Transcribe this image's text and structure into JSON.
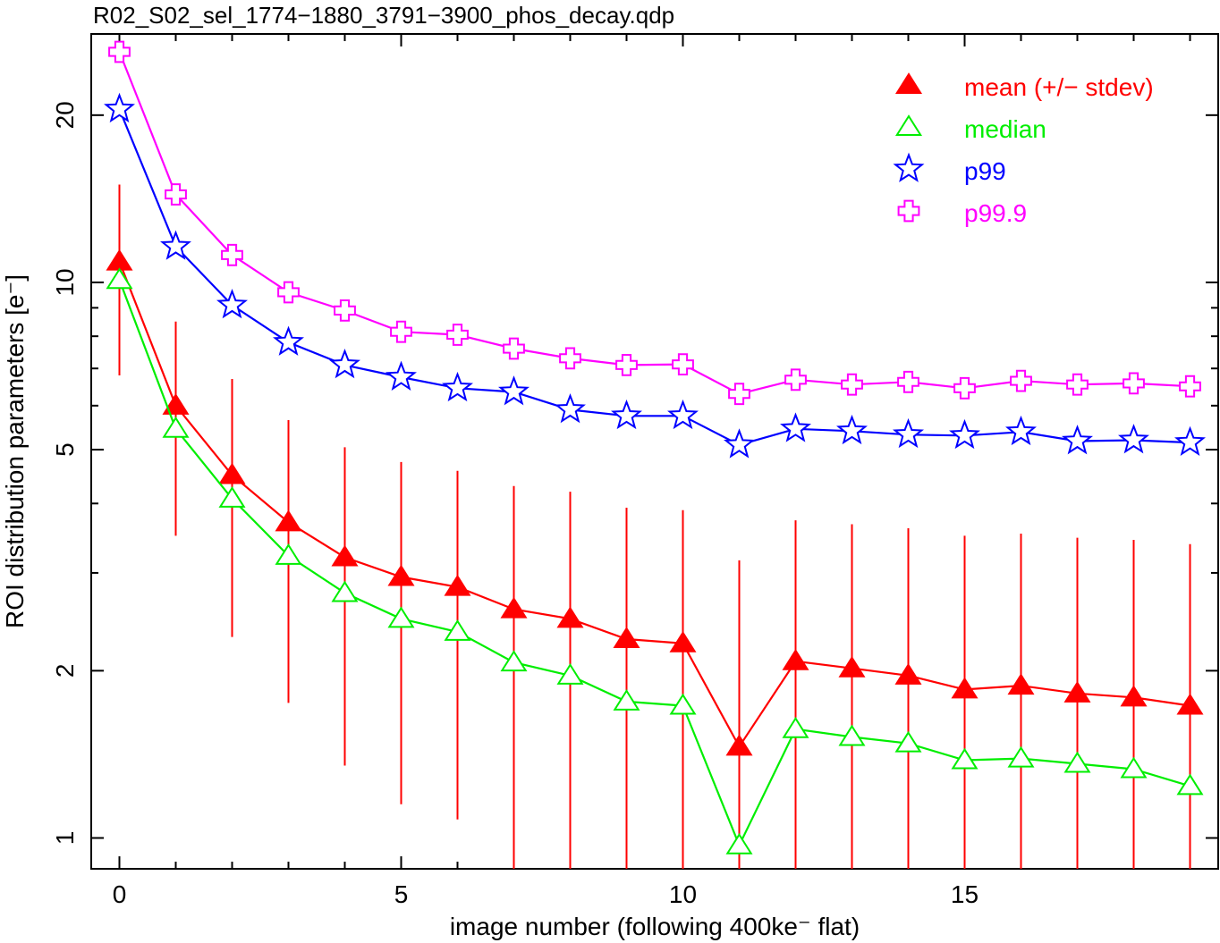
{
  "title": "R02_S02_sel_1774−1880_3791−3900_phos_decay.qdp",
  "chart_data": {
    "type": "line",
    "title": "R02_S02_sel_1774−1880_3791−3900_phos_decay.qdp",
    "xlabel": "image number (following 400ke⁻ flat)",
    "ylabel": "ROI distribution parameters [e⁻]",
    "xlim": [
      -0.5,
      19.5
    ],
    "ylim": [
      0.88,
      28
    ],
    "yscale": "log",
    "xticks": [
      0,
      5,
      10,
      15
    ],
    "yticks": [
      1,
      2,
      5,
      10,
      20
    ],
    "grid": false,
    "legend_position": "top-right",
    "x": [
      0,
      1,
      2,
      3,
      4,
      5,
      6,
      7,
      8,
      9,
      10,
      11,
      12,
      13,
      14,
      15,
      16,
      17,
      18,
      19
    ],
    "series": [
      {
        "name": "mean (+/− stdev)",
        "color": "#ff0000",
        "marker": "filled-triangle",
        "values": [
          10.9,
          6.0,
          4.5,
          3.7,
          3.2,
          2.95,
          2.83,
          2.58,
          2.48,
          2.28,
          2.24,
          1.46,
          2.08,
          2.02,
          1.96,
          1.85,
          1.88,
          1.82,
          1.79,
          1.73
        ],
        "error": [
          4.1,
          2.5,
          2.2,
          1.95,
          1.85,
          1.8,
          1.75,
          1.72,
          1.72,
          1.65,
          1.65,
          1.7,
          1.65,
          1.65,
          1.65,
          1.65,
          1.65,
          1.65,
          1.65,
          1.65
        ]
      },
      {
        "name": "median",
        "color": "#00ee00",
        "marker": "open-triangle",
        "values": [
          10.1,
          5.45,
          4.08,
          3.22,
          2.76,
          2.48,
          2.35,
          2.07,
          1.96,
          1.76,
          1.73,
          0.97,
          1.57,
          1.52,
          1.48,
          1.38,
          1.39,
          1.36,
          1.33,
          1.24
        ]
      },
      {
        "name": "p99",
        "color": "#0000ff",
        "marker": "star",
        "values": [
          20.5,
          11.6,
          9.1,
          7.8,
          7.1,
          6.75,
          6.45,
          6.35,
          5.9,
          5.75,
          5.75,
          5.1,
          5.45,
          5.4,
          5.32,
          5.3,
          5.38,
          5.18,
          5.2,
          5.15
        ]
      },
      {
        "name": "p99.9",
        "color": "#ff00ff",
        "marker": "open-cross",
        "values": [
          26.0,
          14.4,
          11.2,
          9.6,
          8.9,
          8.15,
          8.05,
          7.6,
          7.3,
          7.1,
          7.12,
          6.3,
          6.68,
          6.55,
          6.62,
          6.45,
          6.65,
          6.55,
          6.58,
          6.5
        ]
      }
    ]
  }
}
